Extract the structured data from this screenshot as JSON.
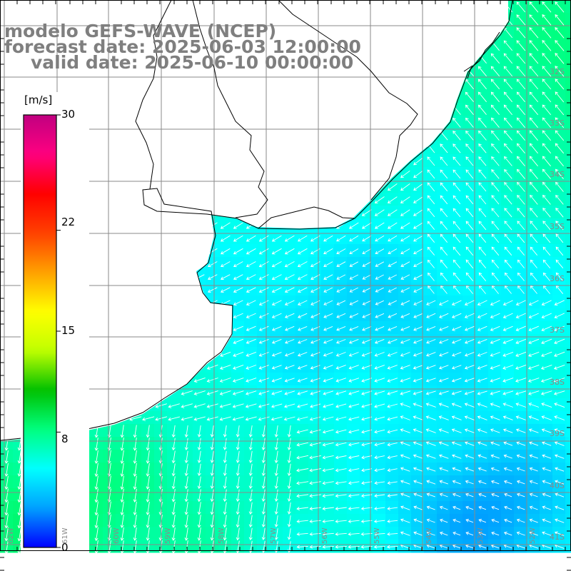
{
  "title": {
    "line1": "modelo GEFS-WAVE (NCEP)",
    "line2": "forecast date: 2025-06-03 12:00:00",
    "line3": "valid date: 2025-06-10 00:00:00"
  },
  "colorbar": {
    "unit": "[m/s]",
    "ticks": [
      "30",
      "22",
      "15",
      "8",
      "0"
    ],
    "tick_values": [
      30,
      22,
      15,
      8,
      0
    ],
    "min": 0,
    "max": 30,
    "colors": [
      "#0000ff",
      "#00a0ff",
      "#00ffff",
      "#00ff7f",
      "#00c000",
      "#c0ff00",
      "#ffff00",
      "#ffa000",
      "#ff4000",
      "#ff0000",
      "#ff0080",
      "#c00080"
    ]
  },
  "lat_labels": [
    "32S",
    "33S",
    "34S",
    "35S",
    "36S",
    "37S",
    "38S",
    "39S",
    "40S",
    "41S"
  ],
  "lon_labels": [
    "62W",
    "61W",
    "60W",
    "59W",
    "58W",
    "57W",
    "56W",
    "55W",
    "54W",
    "53W",
    "52W"
  ],
  "colors": {
    "land": "#ffffff",
    "coast": "#000000",
    "grid": "#8a8a8a",
    "arrow": "#ffffff",
    "title": "#7f7f7f"
  }
}
